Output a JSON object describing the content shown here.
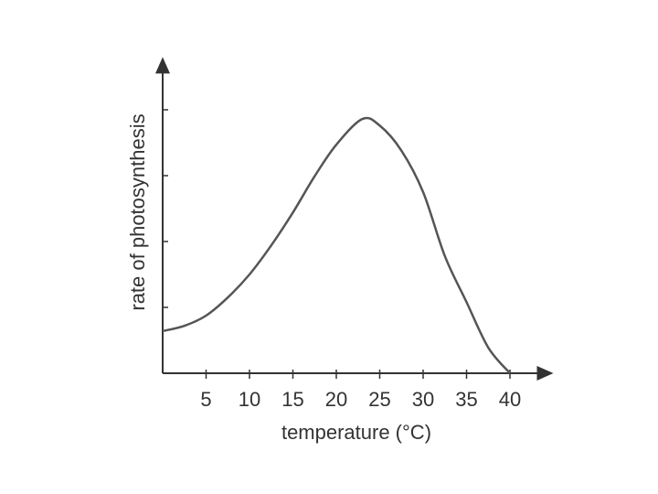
{
  "chart_data": {
    "type": "line",
    "x_label": "temperature (°C)",
    "y_label": "rate of photosynthesis",
    "x": [
      0,
      2.5,
      5,
      7.5,
      10,
      12.5,
      15,
      17.5,
      20,
      23,
      25,
      27.5,
      30,
      32.5,
      35,
      37.5,
      40
    ],
    "series": [
      {
        "color": "#555555",
        "values": [
          0.64,
          0.72,
          0.875,
          1.15,
          1.5,
          1.94,
          2.44,
          2.99,
          3.47,
          3.86,
          3.76,
          3.38,
          2.75,
          1.78,
          1.08,
          0.39,
          0
        ]
      }
    ],
    "xlim": [
      0,
      45
    ],
    "ylim": [
      0,
      4.8
    ],
    "xticks": [
      5,
      10,
      15,
      20,
      25,
      30,
      35,
      40
    ],
    "yticks": [
      1,
      2,
      3,
      4
    ],
    "grid": false
  }
}
